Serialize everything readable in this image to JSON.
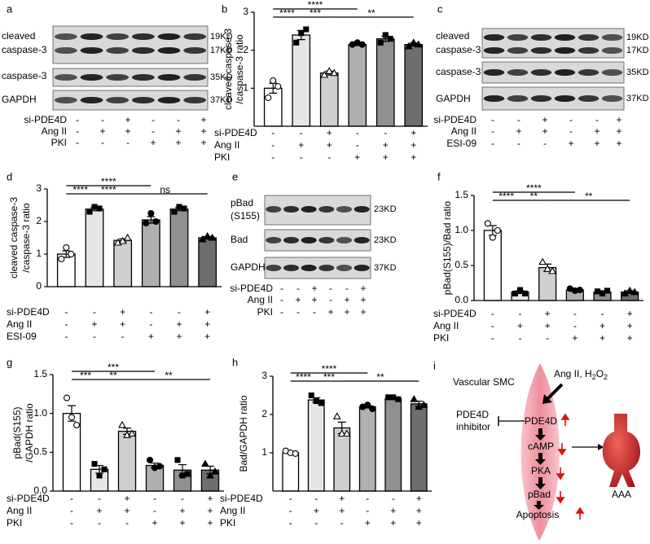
{
  "blots": [
    {
      "panel": "a",
      "row_labels": [
        "cleaved",
        "caspase-3",
        "caspase-3",
        "GAPDH"
      ],
      "weights": [
        "19KD",
        "17KD",
        "35KD",
        "37KD"
      ],
      "conditions": [
        {
          "name": "si-PDE4D",
          "signs": [
            "-",
            "-",
            "+",
            "-",
            "-",
            "+"
          ]
        },
        {
          "name": "Ang II",
          "signs": [
            "-",
            "+",
            "+",
            "-",
            "+",
            "+"
          ]
        },
        {
          "name": "PKI",
          "signs": [
            "-",
            "-",
            "-",
            "+",
            "+",
            "+"
          ]
        }
      ]
    },
    {
      "panel": "c",
      "row_labels": [
        "cleaved",
        "caspase-3",
        "caspase-3",
        "GAPDH"
      ],
      "weights": [
        "19KD",
        "17KD",
        "35KD",
        "37KD"
      ],
      "conditions": [
        {
          "name": "si-PDE4D",
          "signs": [
            "-",
            "-",
            "+",
            "-",
            "-",
            "+"
          ]
        },
        {
          "name": "Ang II",
          "signs": [
            "-",
            "+",
            "+",
            "-",
            "+",
            "+"
          ]
        },
        {
          "name": "ESI-09",
          "signs": [
            "-",
            "-",
            "-",
            "+",
            "+",
            "+"
          ]
        }
      ]
    },
    {
      "panel": "e",
      "row_labels": [
        "pBad",
        "(S155)",
        "Bad",
        "GAPDH"
      ],
      "weights": [
        "23KD",
        "23KD",
        "37KD"
      ],
      "conditions": [
        {
          "name": "si-PDE4D",
          "signs": [
            "-",
            "-",
            "+",
            "-",
            "-",
            "+"
          ]
        },
        {
          "name": "Ang II",
          "signs": [
            "-",
            "+",
            "+",
            "-",
            "+",
            "+"
          ]
        },
        {
          "name": "PKI",
          "signs": [
            "-",
            "-",
            "-",
            "+",
            "+",
            "+"
          ]
        }
      ]
    }
  ],
  "chart_data": [
    {
      "type": "bar",
      "panel": "b",
      "ylabel": [
        "cleaved caspase-3",
        "/caspase-3 ratio"
      ],
      "ylim": [
        0,
        3
      ],
      "yticks": [
        1,
        2,
        3
      ],
      "values": [
        1.0,
        2.4,
        1.4,
        2.15,
        2.3,
        2.15
      ],
      "errors": [
        0.13,
        0.12,
        0.05,
        0.03,
        0.07,
        0.04
      ],
      "points": [
        [
          0.75,
          1.2,
          1.05
        ],
        [
          2.2,
          2.45,
          2.55
        ],
        [
          1.35,
          1.45,
          1.4
        ],
        [
          2.15,
          2.2,
          2.15
        ],
        [
          2.2,
          2.4,
          2.3
        ],
        [
          2.1,
          2.2,
          2.15
        ]
      ],
      "colors": [
        "#ffffff",
        "#e6e6e6",
        "#cfcfcf",
        "#b0b0b0",
        "#909090",
        "#6e6e6e"
      ],
      "significance": [
        "****",
        "****",
        "***",
        "**"
      ],
      "conditions": [
        {
          "name": "si-PDE4D",
          "signs": [
            "-",
            "-",
            "+",
            "-",
            "-",
            "+"
          ]
        },
        {
          "name": "Ang II",
          "signs": [
            "-",
            "+",
            "+",
            "-",
            "+",
            "+"
          ]
        },
        {
          "name": "PKI",
          "signs": [
            "-",
            "-",
            "-",
            "+",
            "+",
            "+"
          ]
        }
      ]
    },
    {
      "type": "bar",
      "panel": "d",
      "ylabel": [
        "cleaved caspase-3",
        "/caspase-3 ratio"
      ],
      "ylim": [
        0,
        3
      ],
      "yticks": [
        0,
        1,
        2,
        3
      ],
      "values": [
        1.0,
        2.38,
        1.42,
        2.05,
        2.38,
        1.5
      ],
      "errors": [
        0.1,
        0.05,
        0.05,
        0.1,
        0.05,
        0.04
      ],
      "points": [
        [
          0.85,
          1.2,
          1.0
        ],
        [
          2.3,
          2.45,
          2.4
        ],
        [
          1.35,
          1.4,
          1.5
        ],
        [
          1.95,
          2.25,
          2.0
        ],
        [
          2.3,
          2.45,
          2.4
        ],
        [
          1.45,
          1.55,
          1.5
        ]
      ],
      "colors": [
        "#ffffff",
        "#e6e6e6",
        "#cfcfcf",
        "#b0b0b0",
        "#909090",
        "#6e6e6e"
      ],
      "significance": [
        "****",
        "****",
        "****",
        "ns"
      ],
      "conditions": [
        {
          "name": "si-PDE4D",
          "signs": [
            "-",
            "-",
            "+",
            "-",
            "-",
            "+"
          ]
        },
        {
          "name": "Ang II",
          "signs": [
            "-",
            "+",
            "+",
            "-",
            "+",
            "+"
          ]
        },
        {
          "name": "ESI-09",
          "signs": [
            "-",
            "-",
            "-",
            "+",
            "+",
            "+"
          ]
        }
      ]
    },
    {
      "type": "bar",
      "panel": "f",
      "ylabel": [
        "pBad(S155)/Bad ratio"
      ],
      "ylim": [
        0,
        1.5
      ],
      "yticks": [
        {
          "value": 0,
          "label": "0.0"
        },
        0.5,
        {
          "value": 1,
          "label": "1.0"
        },
        1.5
      ],
      "values": [
        1.0,
        0.12,
        0.47,
        0.15,
        0.12,
        0.12
      ],
      "errors": [
        0.07,
        0.02,
        0.05,
        0.01,
        0.02,
        0.02
      ],
      "points": [
        [
          1.1,
          0.9,
          1.0
        ],
        [
          0.1,
          0.15,
          0.1
        ],
        [
          0.55,
          0.45,
          0.42
        ],
        [
          0.17,
          0.14,
          0.15
        ],
        [
          0.13,
          0.1,
          0.14
        ],
        [
          0.1,
          0.14,
          0.12
        ]
      ],
      "colors": [
        "#ffffff",
        "#e6e6e6",
        "#cfcfcf",
        "#b0b0b0",
        "#909090",
        "#6e6e6e"
      ],
      "significance": [
        "****",
        "****",
        "**",
        "**"
      ],
      "conditions": [
        {
          "name": "si-PDE4D",
          "signs": [
            "-",
            "-",
            "+",
            "-",
            "-",
            "+"
          ]
        },
        {
          "name": "Ang II",
          "signs": [
            "-",
            "+",
            "+",
            "-",
            "+",
            "+"
          ]
        },
        {
          "name": "PKI",
          "signs": [
            "-",
            "-",
            "-",
            "+",
            "+",
            "+"
          ]
        }
      ]
    },
    {
      "type": "bar",
      "panel": "g",
      "ylabel": [
        "pBad(S155)",
        "/GAPDH ratio"
      ],
      "ylim": [
        0,
        1.5
      ],
      "yticks": [
        {
          "value": 0,
          "label": "0.0"
        },
        0.5,
        {
          "value": 1,
          "label": "1.0"
        },
        1.5
      ],
      "values": [
        1.0,
        0.28,
        0.77,
        0.33,
        0.27,
        0.27
      ],
      "errors": [
        0.1,
        0.05,
        0.04,
        0.03,
        0.07,
        0.05
      ],
      "points": [
        [
          1.2,
          0.95,
          0.85
        ],
        [
          0.35,
          0.2,
          0.28
        ],
        [
          0.85,
          0.72,
          0.74
        ],
        [
          0.4,
          0.3,
          0.32
        ],
        [
          0.4,
          0.2,
          0.22
        ],
        [
          0.35,
          0.2,
          0.25
        ]
      ],
      "colors": [
        "#ffffff",
        "#e6e6e6",
        "#cfcfcf",
        "#b0b0b0",
        "#909090",
        "#6e6e6e"
      ],
      "significance": [
        "***",
        "***",
        "**",
        "**"
      ],
      "conditions": [
        {
          "name": "si-PDE4D",
          "signs": [
            "-",
            "-",
            "+",
            "-",
            "-",
            "+"
          ]
        },
        {
          "name": "Ang II",
          "signs": [
            "-",
            "+",
            "+",
            "-",
            "+",
            "+"
          ]
        },
        {
          "name": "PKI",
          "signs": [
            "-",
            "-",
            "-",
            "+",
            "+",
            "+"
          ]
        }
      ]
    },
    {
      "type": "bar",
      "panel": "h",
      "ylabel": [
        "Bad/GAPDH ratio"
      ],
      "ylim": [
        0,
        3
      ],
      "yticks": [
        1,
        2,
        3
      ],
      "values": [
        1.0,
        2.38,
        1.65,
        2.2,
        2.42,
        2.28
      ],
      "errors": [
        0.02,
        0.06,
        0.15,
        0.03,
        0.02,
        0.07
      ],
      "points": [
        [
          1.05,
          1.0,
          0.98
        ],
        [
          2.5,
          2.35,
          2.3
        ],
        [
          1.95,
          1.5,
          1.5
        ],
        [
          2.2,
          2.25,
          2.15
        ],
        [
          2.45,
          2.45,
          2.4
        ],
        [
          2.4,
          2.2,
          2.25
        ]
      ],
      "colors": [
        "#ffffff",
        "#e6e6e6",
        "#cfcfcf",
        "#b0b0b0",
        "#909090",
        "#6e6e6e"
      ],
      "significance": [
        "****",
        "****",
        "***",
        "**"
      ],
      "conditions": [
        {
          "name": "si-PDE4D",
          "signs": [
            "-",
            "-",
            "+",
            "-",
            "-",
            "+"
          ]
        },
        {
          "name": "Ang II",
          "signs": [
            "-",
            "+",
            "+",
            "-",
            "+",
            "+"
          ]
        },
        {
          "name": "PKI",
          "signs": [
            "-",
            "-",
            "-",
            "+",
            "+",
            "+"
          ]
        }
      ]
    }
  ],
  "diagram": {
    "panel": "i",
    "title": "Vascular SMC",
    "stimulus": [
      "Ang II, H",
      "2",
      "O",
      "2"
    ],
    "inhibitor": [
      "PDE4D",
      "inhibitor"
    ],
    "pathway": [
      "PDE4D",
      "cAMP",
      "PKA",
      "pBad",
      "Apoptosis"
    ],
    "outcome": "AAA"
  }
}
